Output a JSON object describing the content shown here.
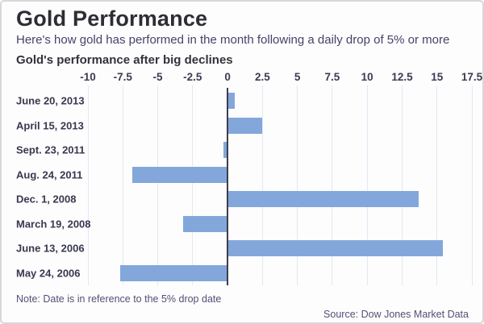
{
  "header": {
    "title": "Gold Performance",
    "subtitle": "Here's how gold has performed in the month following a daily drop of 5% or more"
  },
  "chart_heading": "Gold's performance after big declines",
  "footer": {
    "note": "Note: Date is in reference to the 5% drop date",
    "source": "Source: Dow Jones Market Data"
  },
  "colors": {
    "bar": "#83a7da",
    "grid": "#e2e9f2",
    "zero_line": "#3d3d4c",
    "title": "#2d2d33",
    "subtitle": "#4a4067",
    "category_label": "#383850",
    "note": "#574e72"
  },
  "chart_data": {
    "type": "bar",
    "orientation": "horizontal",
    "title": "Gold's performance after big declines",
    "categories": [
      "June 20, 2013",
      "April 15, 2013",
      "Sept. 23, 2011",
      "Aug. 24, 2011",
      "Dec. 1, 2008",
      "March 19, 2008",
      "June 13, 2006",
      "May 24, 2006"
    ],
    "values": [
      0.5,
      2.5,
      -0.3,
      -6.8,
      13.7,
      -3.2,
      15.4,
      -7.7
    ],
    "xlim": [
      -10,
      17.5
    ],
    "xticks": [
      -10,
      -7.5,
      -5,
      -2.5,
      0,
      2.5,
      5,
      7.5,
      10,
      12.5,
      15,
      17.5
    ],
    "xtick_labels": [
      "-10",
      "-7.5",
      "-5",
      "-2.5",
      "0",
      "2.5",
      "5",
      "7.5",
      "10",
      "12.5",
      "15",
      "17.5"
    ],
    "xlabel": "",
    "ylabel": "",
    "grid": true,
    "legend": false
  }
}
